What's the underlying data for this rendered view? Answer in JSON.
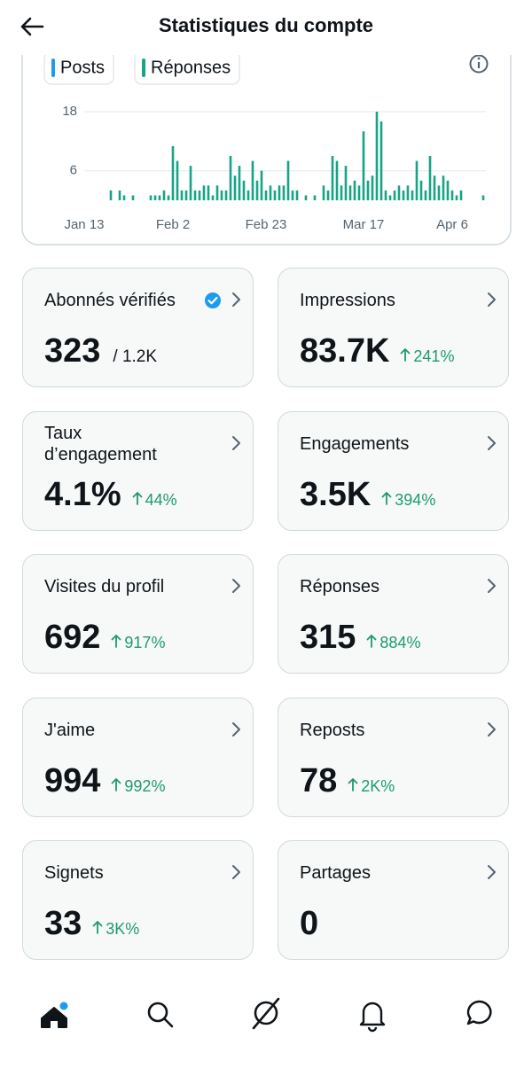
{
  "header": {
    "title": "Statistiques du compte"
  },
  "chart_data": {
    "type": "bar",
    "stacked": true,
    "categories": [
      "Jan 13",
      null,
      null,
      null,
      null,
      null,
      null,
      null,
      null,
      null,
      null,
      null,
      null,
      null,
      null,
      null,
      null,
      null,
      null,
      null,
      "Feb 2",
      null,
      null,
      null,
      null,
      null,
      null,
      null,
      null,
      null,
      null,
      null,
      null,
      null,
      null,
      null,
      null,
      null,
      null,
      null,
      null,
      "Feb 23",
      null,
      null,
      null,
      null,
      null,
      null,
      null,
      null,
      null,
      null,
      null,
      null,
      null,
      null,
      null,
      null,
      null,
      null,
      null,
      null,
      null,
      "Mar 17",
      null,
      null,
      null,
      null,
      null,
      null,
      null,
      null,
      null,
      null,
      null,
      null,
      null,
      null,
      null,
      null,
      null,
      null,
      null,
      "Apr 6",
      null,
      null,
      null,
      null,
      null,
      null,
      null
    ],
    "series": [
      {
        "name": "Posts",
        "color": "#1d9bf0",
        "values": [
          0,
          0,
          0,
          0,
          0,
          0,
          0,
          0,
          0,
          0,
          0,
          0,
          0,
          0,
          0,
          0,
          0,
          0,
          0,
          0,
          0,
          0,
          0,
          0,
          0,
          0,
          0,
          0,
          0,
          0,
          0,
          0,
          0,
          0,
          0,
          0,
          0,
          0,
          0,
          0,
          0,
          0,
          0,
          0,
          0,
          0,
          0,
          0,
          0,
          0,
          0,
          0,
          0,
          0,
          0,
          0,
          0,
          0,
          0,
          0,
          0,
          0,
          0,
          0,
          0,
          0,
          0,
          0,
          0,
          0,
          0,
          0,
          0,
          0,
          0,
          0,
          0,
          0,
          0,
          0,
          0,
          0,
          0,
          0,
          0,
          0,
          0,
          0,
          0,
          0,
          0
        ]
      },
      {
        "name": "Réponses",
        "color": "#17a386",
        "values": [
          0,
          0,
          0,
          0,
          0,
          0,
          2,
          0,
          2,
          1,
          0,
          1,
          0,
          0,
          0,
          1,
          1,
          1,
          2,
          1,
          11,
          8,
          2,
          2,
          7,
          2,
          2,
          3,
          3,
          1,
          3,
          2,
          2,
          9,
          5,
          7,
          4,
          2,
          8,
          4,
          6,
          2,
          3,
          2,
          3,
          3,
          8,
          2,
          2,
          0,
          1,
          0,
          1,
          0,
          3,
          2,
          9,
          8,
          3,
          7,
          3,
          4,
          3,
          14,
          4,
          5,
          18,
          16,
          2,
          1,
          2,
          3,
          2,
          3,
          2,
          8,
          4,
          2,
          9,
          5,
          3,
          5,
          4,
          2,
          1,
          2,
          0,
          0,
          0,
          0,
          1
        ]
      }
    ],
    "ylim": [
      0,
      18
    ],
    "yticks": [
      6,
      18
    ],
    "grid": true
  },
  "cards": [
    {
      "label": "Abonnés vérifiés",
      "value": "323",
      "total": "/ 1.2K"
    },
    {
      "label": "Impressions",
      "value": "83.7K",
      "change": "241%"
    },
    {
      "label": "Taux d’engagement",
      "value": "4.1%",
      "change": "44%"
    },
    {
      "label": "Engagements",
      "value": "3.5K",
      "change": "394%"
    },
    {
      "label": "Visites du profil",
      "value": "692",
      "change": "917%"
    },
    {
      "label": "Réponses",
      "value": "315",
      "change": "884%"
    },
    {
      "label": "J'aime",
      "value": "994",
      "change": "992%"
    },
    {
      "label": "Reposts",
      "value": "78",
      "change": "2K%"
    },
    {
      "label": "Signets",
      "value": "33",
      "change": "3K%"
    },
    {
      "label": "Partages",
      "value": "0"
    }
  ]
}
